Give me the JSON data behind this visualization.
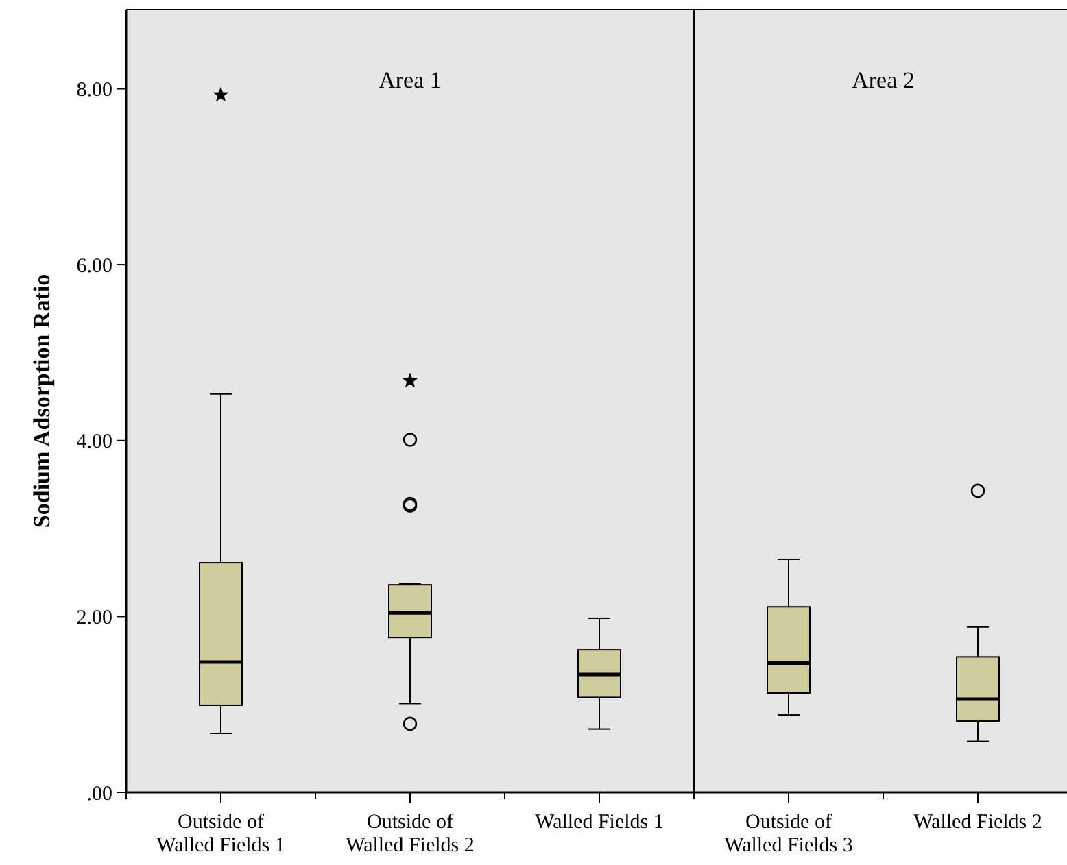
{
  "chart_data": [
    {
      "type": "box",
      "title": "Area 1",
      "ylabel": "Sodium Adsorption Ratio",
      "categories": [
        "Outside of Walled Fields 1",
        "Outside of Walled Fields 2",
        "Walled Fields 1"
      ],
      "ylim": [
        0,
        8.9
      ],
      "yticks": [
        {
          "value": 0,
          "label": ".00"
        },
        {
          "value": 2,
          "label": "2.00"
        },
        {
          "value": 4,
          "label": "4.00"
        },
        {
          "value": 6,
          "label": "6.00"
        },
        {
          "value": 8,
          "label": "8.00"
        }
      ],
      "series": [
        {
          "color": "#cdcc9a",
          "boxes": [
            {
              "low": 0.67,
              "q1": 0.99,
              "median": 1.48,
              "q3": 2.61,
              "high": 4.53
            },
            {
              "low": 1.01,
              "q1": 1.76,
              "median": 2.04,
              "q3": 2.36,
              "high": 2.37,
              "outliers": [
                0.78,
                3.26,
                3.28,
                4.01
              ]
            },
            {
              "low": 0.72,
              "q1": 1.08,
              "median": 1.34,
              "q3": 1.62,
              "high": 1.98
            }
          ]
        },
        {
          "type": "scatter",
          "marker": "star",
          "color": "#000000",
          "x": [
            "Outside of Walled Fields 1",
            "Outside of Walled Fields 2"
          ],
          "values": [
            7.93,
            4.68
          ]
        }
      ]
    },
    {
      "type": "box",
      "title": "Area 2",
      "categories": [
        "Outside of Walled Fields 3",
        "Walled Fields 2"
      ],
      "ylim": [
        0,
        8.9
      ],
      "tick_labels": "x",
      "series": [
        {
          "color": "#cdcc9a",
          "boxes": [
            {
              "low": 0.88,
              "q1": 1.13,
              "median": 1.47,
              "q3": 2.11,
              "high": 2.65
            },
            {
              "low": 0.58,
              "q1": 0.81,
              "median": 1.06,
              "q3": 1.54,
              "high": 1.88,
              "outliers": [
                3.43
              ]
            }
          ]
        }
      ]
    }
  ]
}
